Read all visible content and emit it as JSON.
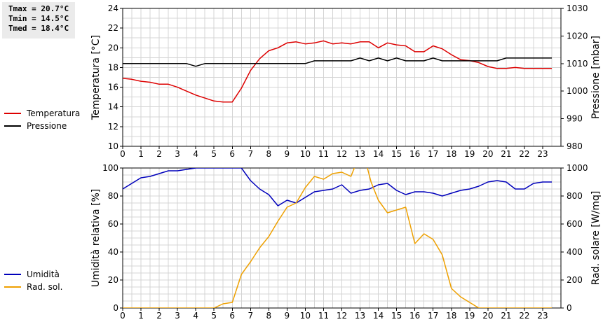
{
  "stats": {
    "tmax": "Tmax = 20.7°C",
    "tmin": "Tmin = 14.5°C",
    "tmed": "Tmed = 18.4°C"
  },
  "colors": {
    "temperature": "#dd0000",
    "pressure": "#000000",
    "humidity": "#0000bb",
    "radiation": "#eea000",
    "grid": "#d4d4d4"
  },
  "chart_data": [
    {
      "type": "line",
      "xlim": [
        0,
        24
      ],
      "x_ticks": [
        0,
        1,
        2,
        3,
        4,
        5,
        6,
        7,
        8,
        9,
        10,
        11,
        12,
        13,
        14,
        15,
        16,
        17,
        18,
        19,
        20,
        21,
        22,
        23
      ],
      "ylabel": "Temperatura [°C]",
      "y2label": "Pressione [mbar]",
      "ylim": [
        10,
        24
      ],
      "y_ticks": [
        10,
        12,
        14,
        16,
        18,
        20,
        22,
        24
      ],
      "y2lim": [
        980,
        1030
      ],
      "y2_ticks": [
        980,
        990,
        1000,
        1010,
        1020,
        1030
      ],
      "grid": true,
      "legend": "left",
      "series": [
        {
          "name": "Temperatura",
          "axis": "left",
          "x": [
            0,
            0.5,
            1,
            1.5,
            2,
            2.5,
            3,
            3.5,
            4,
            4.5,
            5,
            5.5,
            6,
            6.5,
            7,
            7.5,
            8,
            8.5,
            9,
            9.5,
            10,
            10.5,
            11,
            11.5,
            12,
            12.5,
            13,
            13.5,
            14,
            14.5,
            15,
            15.5,
            16,
            16.5,
            17,
            17.5,
            18,
            18.5,
            19,
            19.5,
            20,
            20.5,
            21,
            21.5,
            22,
            22.5,
            23,
            23.5
          ],
          "values": [
            16.9,
            16.8,
            16.6,
            16.5,
            16.3,
            16.3,
            16.0,
            15.6,
            15.2,
            14.9,
            14.6,
            14.5,
            14.5,
            15.9,
            17.7,
            18.9,
            19.7,
            20.0,
            20.5,
            20.6,
            20.4,
            20.5,
            20.7,
            20.4,
            20.5,
            20.4,
            20.6,
            20.6,
            20.0,
            20.5,
            20.3,
            20.2,
            19.6,
            19.6,
            20.2,
            19.9,
            19.3,
            18.8,
            18.7,
            18.5,
            18.1,
            17.9,
            17.9,
            18.0,
            17.9,
            17.9,
            17.9,
            17.9
          ]
        },
        {
          "name": "Pressione",
          "axis": "right",
          "x": [
            0,
            0.5,
            1,
            1.5,
            2,
            2.5,
            3,
            3.5,
            4,
            4.5,
            5,
            5.5,
            6,
            6.5,
            7,
            7.5,
            8,
            8.5,
            9,
            9.5,
            10,
            10.5,
            11,
            11.5,
            12,
            12.5,
            13,
            13.5,
            14,
            14.5,
            15,
            15.5,
            16,
            16.5,
            17,
            17.5,
            18,
            18.5,
            19,
            19.5,
            20,
            20.5,
            21,
            21.5,
            22,
            22.5,
            23,
            23.5
          ],
          "values": [
            1010,
            1010,
            1010,
            1010,
            1010,
            1010,
            1010,
            1010,
            1009,
            1010,
            1010,
            1010,
            1010,
            1010,
            1010,
            1010,
            1010,
            1010,
            1010,
            1010,
            1010,
            1011,
            1011,
            1011,
            1011,
            1011,
            1012,
            1011,
            1012,
            1011,
            1012,
            1011,
            1011,
            1011,
            1012,
            1011,
            1011,
            1011,
            1011,
            1011,
            1011,
            1011,
            1012,
            1012,
            1012,
            1012,
            1012,
            1012
          ]
        }
      ]
    },
    {
      "type": "line",
      "xlim": [
        0,
        24
      ],
      "x_ticks": [
        0,
        1,
        2,
        3,
        4,
        5,
        6,
        7,
        8,
        9,
        10,
        11,
        12,
        13,
        14,
        15,
        16,
        17,
        18,
        19,
        20,
        21,
        22,
        23
      ],
      "ylabel": "Umidità relativa [%]",
      "y2label": "Rad. solare [W/mq]",
      "ylim": [
        0,
        100
      ],
      "y_ticks": [
        0,
        20,
        40,
        60,
        80,
        100
      ],
      "y2lim": [
        0,
        1000
      ],
      "y2_ticks": [
        0,
        200,
        400,
        600,
        800,
        1000
      ],
      "grid": true,
      "legend": "left",
      "series": [
        {
          "name": "Umidità",
          "axis": "left",
          "x": [
            0,
            0.5,
            1,
            1.5,
            2,
            2.5,
            3,
            3.5,
            4,
            4.5,
            5,
            5.5,
            6,
            6.5,
            7,
            7.5,
            8,
            8.5,
            9,
            9.5,
            10,
            10.5,
            11,
            11.5,
            12,
            12.5,
            13,
            13.5,
            14,
            14.5,
            15,
            15.5,
            16,
            16.5,
            17,
            17.5,
            18,
            18.5,
            19,
            19.5,
            20,
            20.5,
            21,
            21.5,
            22,
            22.5,
            23,
            23.5
          ],
          "values": [
            85,
            89,
            93,
            94,
            96,
            98,
            98,
            99,
            100,
            100,
            100,
            100,
            100,
            100,
            91,
            85,
            81,
            73,
            77,
            75,
            79,
            83,
            84,
            85,
            88,
            82,
            84,
            85,
            88,
            89,
            84,
            81,
            83,
            83,
            82,
            80,
            82,
            84,
            85,
            87,
            90,
            91,
            90,
            85,
            85,
            89,
            90,
            90
          ]
        },
        {
          "name": "Rad. sol.",
          "axis": "right",
          "x": [
            0,
            0.5,
            1,
            1.5,
            2,
            2.5,
            3,
            3.5,
            4,
            4.5,
            5,
            5.5,
            6,
            6.5,
            7,
            7.5,
            8,
            8.5,
            9,
            9.5,
            10,
            10.5,
            11,
            11.5,
            12,
            12.5,
            13,
            13.2,
            13.6,
            14,
            14.5,
            15,
            15.5,
            16,
            16.5,
            17,
            17.5,
            18,
            18.5,
            19,
            19.5,
            20,
            20.5,
            21,
            21.5,
            22,
            22.5,
            23,
            23.5
          ],
          "values": [
            0,
            0,
            0,
            0,
            0,
            0,
            0,
            0,
            0,
            0,
            0,
            30,
            40,
            240,
            330,
            430,
            510,
            620,
            720,
            750,
            860,
            940,
            920,
            960,
            970,
            940,
            1100,
            1100,
            900,
            770,
            680,
            700,
            720,
            460,
            530,
            490,
            380,
            140,
            80,
            40,
            0,
            0,
            0,
            0,
            0,
            0,
            0,
            0,
            0
          ]
        }
      ]
    }
  ]
}
